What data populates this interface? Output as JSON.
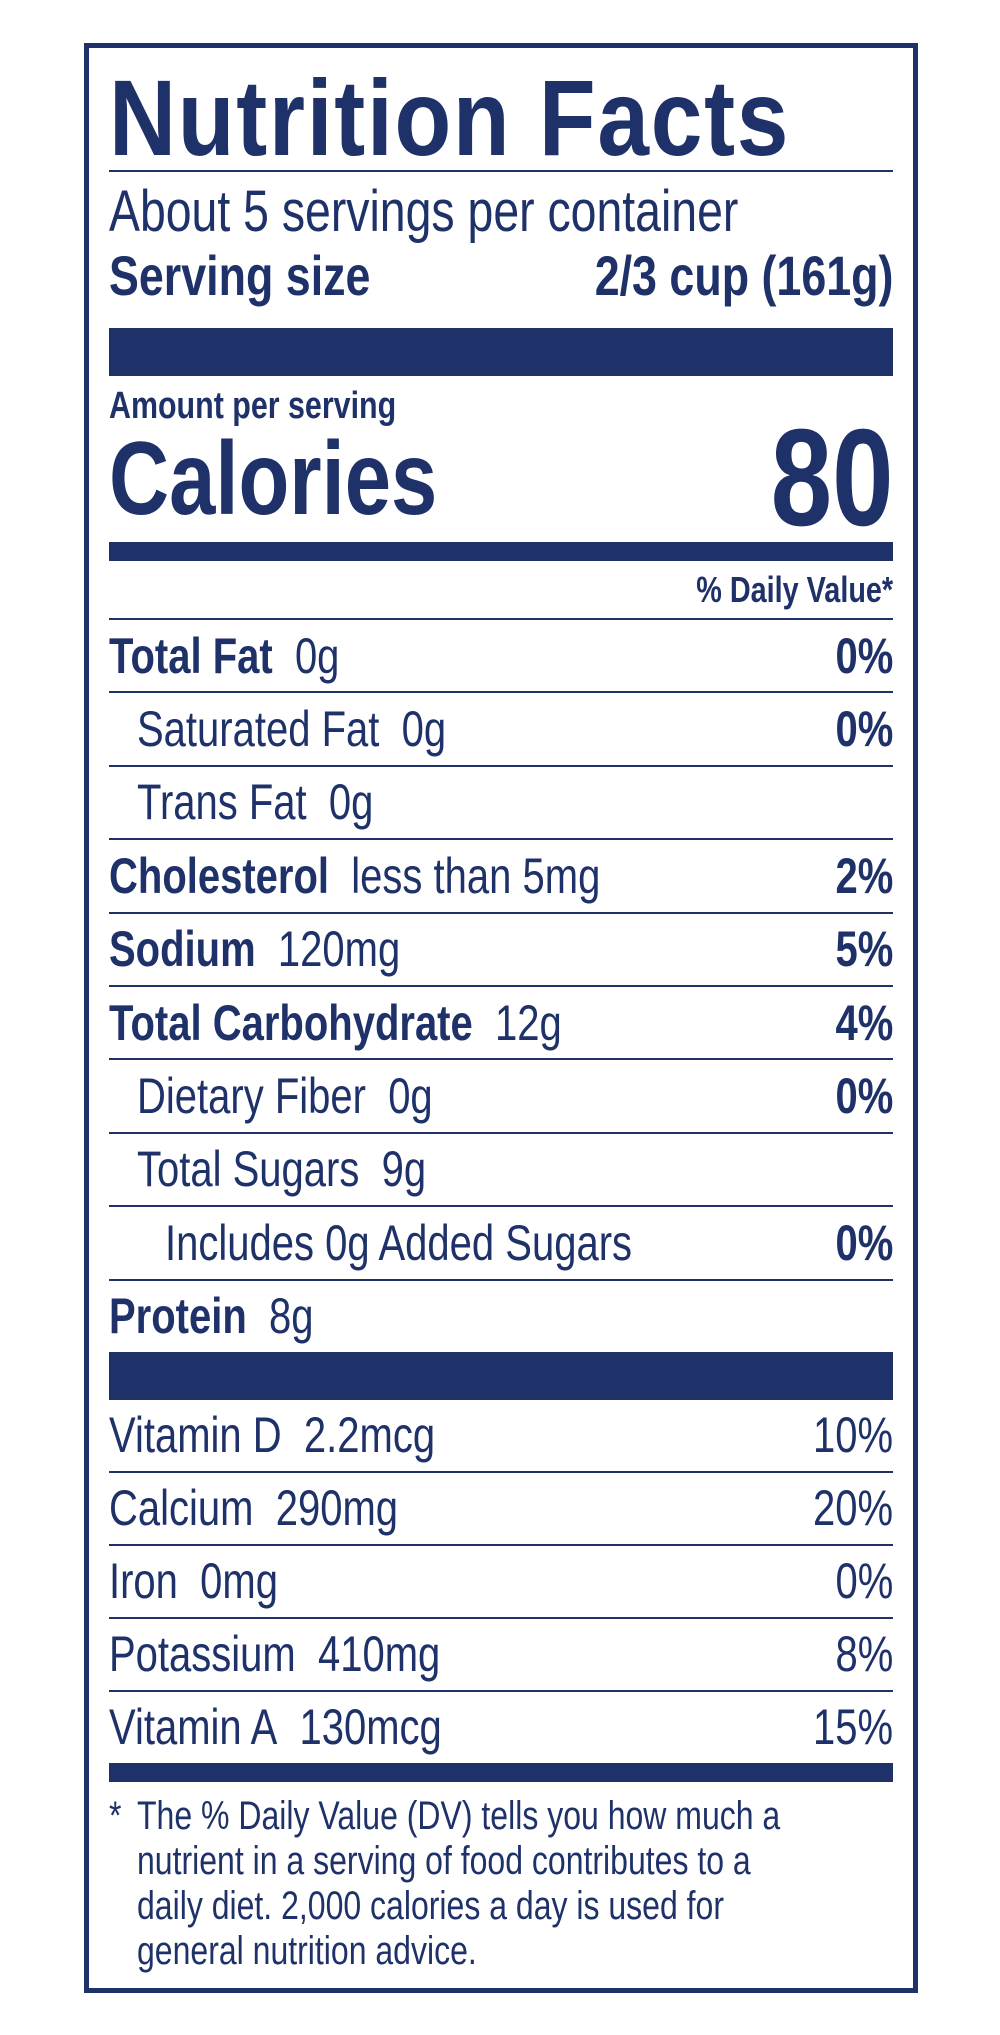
{
  "title": "Nutrition Facts",
  "servings_per_container": "About 5 servings per container",
  "serving_size_label": "Serving size",
  "serving_size_value": "2/3 cup (161g)",
  "amount_per_serving": "Amount per serving",
  "calories_label": "Calories",
  "calories_value": "80",
  "daily_value_header": "% Daily Value*",
  "nutrients": [
    {
      "name": "Total Fat",
      "amount": "0g",
      "dv": "0%",
      "bold": true,
      "indent": 0
    },
    {
      "name": "Saturated Fat",
      "amount": "0g",
      "dv": "0%",
      "bold": false,
      "indent": 1
    },
    {
      "name": "Trans Fat",
      "amount": "0g",
      "dv": "",
      "bold": false,
      "indent": 1
    },
    {
      "name": "Cholesterol",
      "amount": "less than 5mg",
      "dv": "2%",
      "bold": true,
      "indent": 0
    },
    {
      "name": "Sodium",
      "amount": "120mg",
      "dv": "5%",
      "bold": true,
      "indent": 0
    },
    {
      "name": "Total Carbohydrate",
      "amount": "12g",
      "dv": "4%",
      "bold": true,
      "indent": 0
    },
    {
      "name": "Dietary Fiber",
      "amount": "0g",
      "dv": "0%",
      "bold": false,
      "indent": 1
    },
    {
      "name": "Total Sugars",
      "amount": "9g",
      "dv": "",
      "bold": false,
      "indent": 1
    },
    {
      "name": "Includes 0g Added Sugars",
      "amount": "",
      "dv": "0%",
      "bold": false,
      "indent": 2
    },
    {
      "name": "Protein",
      "amount": "8g",
      "dv": "",
      "bold": true,
      "indent": 0
    }
  ],
  "vitamins": [
    {
      "name": "Vitamin D",
      "amount": "2.2mcg",
      "dv": "10%"
    },
    {
      "name": "Calcium",
      "amount": "290mg",
      "dv": "20%"
    },
    {
      "name": "Iron",
      "amount": "0mg",
      "dv": "0%"
    },
    {
      "name": "Potassium",
      "amount": "410mg",
      "dv": "8%"
    },
    {
      "name": "Vitamin A",
      "amount": "130mcg",
      "dv": "15%"
    }
  ],
  "footnote": {
    "star": "*",
    "lines": [
      "The % Daily Value (DV) tells you how much a",
      "nutrient in a serving of food contributes to a",
      "daily diet. 2,000 calories a day is used for",
      "general nutrition advice."
    ]
  },
  "colors": {
    "ink": "#1f3169",
    "background": "#ffffff"
  }
}
